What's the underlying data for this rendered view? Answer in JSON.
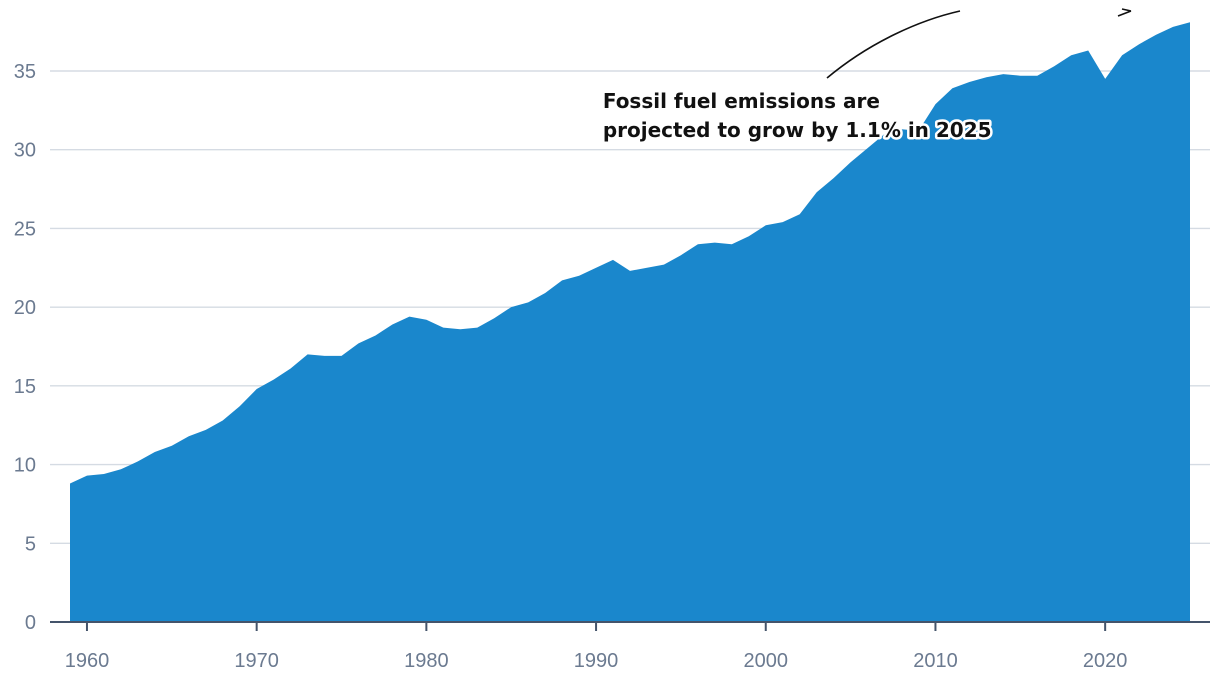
{
  "chart_data": {
    "type": "area",
    "title": "",
    "xlabel": "",
    "ylabel": "",
    "xlim": [
      1959,
      2025
    ],
    "ylim": [
      0,
      38
    ],
    "grid": true,
    "x_ticks": [
      1960,
      1970,
      1980,
      1990,
      2000,
      2010,
      2020
    ],
    "y_ticks": [
      0,
      5,
      10,
      15,
      20,
      25,
      30,
      35
    ],
    "colors": {
      "area": "#1a87cc",
      "grid": "#d5dbe3",
      "axis": "#44546b",
      "tick_label": "#6b7a90"
    },
    "annotation": {
      "lines": [
        "Fossil fuel emissions are",
        "projected to grow by 1.1% in 2025"
      ],
      "x": 1990.4,
      "y": 30.8
    },
    "series": [
      {
        "x": [
          1959,
          1960,
          1961,
          1962,
          1963,
          1964,
          1965,
          1966,
          1967,
          1968,
          1969,
          1970,
          1971,
          1972,
          1973,
          1974,
          1975,
          1976,
          1977,
          1978,
          1979,
          1980,
          1981,
          1982,
          1983,
          1984,
          1985,
          1986,
          1987,
          1988,
          1989,
          1990,
          1991,
          1992,
          1993,
          1994,
          1995,
          1996,
          1997,
          1998,
          1999,
          2000,
          2001,
          2002,
          2003,
          2004,
          2005,
          2006,
          2007,
          2008,
          2009,
          2010,
          2011,
          2012,
          2013,
          2014,
          2015,
          2016,
          2017,
          2018,
          2019,
          2020,
          2021,
          2022,
          2023,
          2024,
          2025
        ],
        "values": [
          8.8,
          9.3,
          9.4,
          9.7,
          10.2,
          10.8,
          11.2,
          11.8,
          12.2,
          12.8,
          13.7,
          14.8,
          15.4,
          16.1,
          17.0,
          16.9,
          16.9,
          17.7,
          18.2,
          18.9,
          19.4,
          19.2,
          18.7,
          18.6,
          18.7,
          19.3,
          20.0,
          20.3,
          20.9,
          21.7,
          22.0,
          22.5,
          23.0,
          22.3,
          22.5,
          22.7,
          23.3,
          24.0,
          24.1,
          24.0,
          24.5,
          25.2,
          25.4,
          25.9,
          27.3,
          28.2,
          29.2,
          30.1,
          31.0,
          31.3,
          31.2,
          32.9,
          33.9,
          34.3,
          34.6,
          34.8,
          34.7,
          34.7,
          35.3,
          36.0,
          36.3,
          34.5,
          36.0,
          36.7,
          37.3,
          37.8,
          38.1
        ]
      }
    ]
  }
}
